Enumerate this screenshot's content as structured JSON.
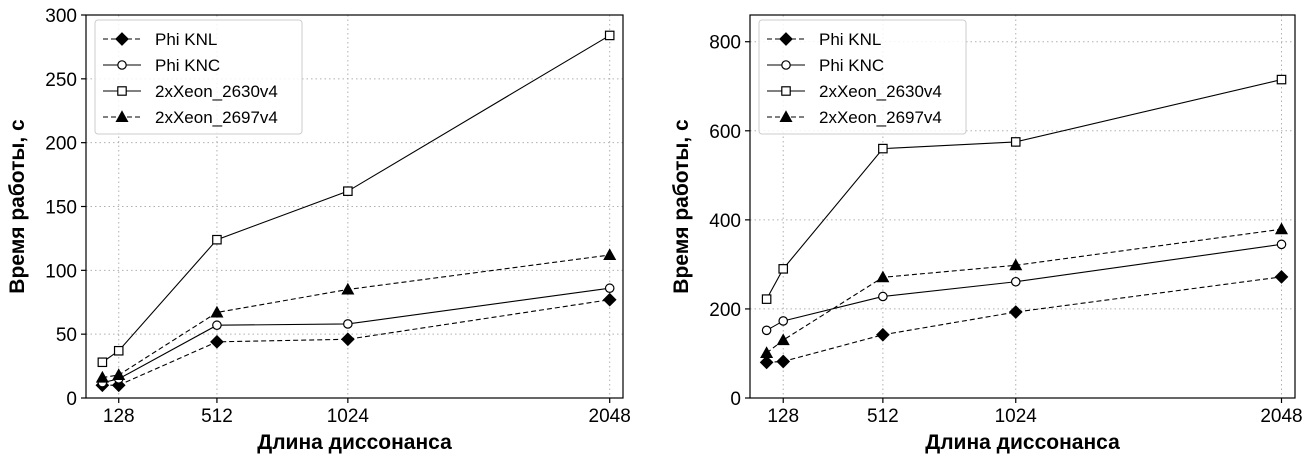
{
  "chart_data": [
    {
      "type": "line",
      "xlabel": "Длина диссонанса",
      "ylabel": "Время работы, с",
      "x": [
        64,
        128,
        512,
        1024,
        2048
      ],
      "xticks": [
        128,
        512,
        1024,
        2048
      ],
      "xlim": [
        0,
        2100
      ],
      "ylim": [
        0,
        300
      ],
      "yticks": [
        0,
        50,
        100,
        150,
        200,
        250,
        300
      ],
      "grid": true,
      "legend": "top-left",
      "series": [
        {
          "name": "Phi KNL",
          "marker": "diamond",
          "dash": true,
          "values": [
            10,
            10,
            44,
            46,
            77
          ]
        },
        {
          "name": "Phi KNC",
          "marker": "circle",
          "dash": false,
          "values": [
            12,
            15,
            57,
            58,
            86
          ]
        },
        {
          "name": "2xXeon_2630v4",
          "marker": "square",
          "dash": false,
          "values": [
            28,
            37,
            124,
            162,
            284
          ]
        },
        {
          "name": "2xXeon_2697v4",
          "marker": "triangle",
          "dash": true,
          "values": [
            16,
            18,
            67,
            85,
            112
          ]
        }
      ]
    },
    {
      "type": "line",
      "xlabel": "Длина диссонанса",
      "ylabel": "Время работы, с",
      "x": [
        64,
        128,
        512,
        1024,
        2048
      ],
      "xticks": [
        128,
        512,
        1024,
        2048
      ],
      "xlim": [
        0,
        2100
      ],
      "ylim": [
        0,
        860
      ],
      "yticks": [
        0,
        200,
        400,
        600,
        800
      ],
      "grid": true,
      "legend": "top-left",
      "series": [
        {
          "name": "Phi KNL",
          "marker": "diamond",
          "dash": true,
          "values": [
            80,
            82,
            142,
            193,
            272
          ]
        },
        {
          "name": "Phi KNC",
          "marker": "circle",
          "dash": false,
          "values": [
            152,
            173,
            228,
            261,
            345
          ]
        },
        {
          "name": "2xXeon_2630v4",
          "marker": "square",
          "dash": false,
          "values": [
            222,
            290,
            560,
            575,
            715
          ]
        },
        {
          "name": "2xXeon_2697v4",
          "marker": "triangle",
          "dash": true,
          "values": [
            101,
            130,
            271,
            298,
            379
          ]
        }
      ]
    }
  ]
}
